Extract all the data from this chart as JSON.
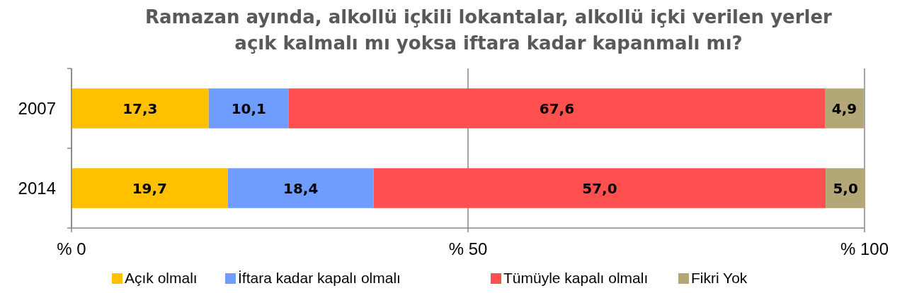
{
  "chart_data": {
    "type": "bar",
    "title": "Ramazan ayında, alkollü içkili lokantalar, alkollü içki verilen yerler\naçık kalmalı mı yoksa iftara kadar kapanmalı mı?",
    "categories": [
      "2007",
      "2014"
    ],
    "orientation": "horizontal",
    "stacked": true,
    "series": [
      {
        "name": "Açık olmalı",
        "color": "#ffc000",
        "values": [
          17.3,
          19.7
        ],
        "value_labels": [
          "17,3",
          "19,7"
        ]
      },
      {
        "name": "İftara kadar kapalı olmalı",
        "color": "#6f9cff",
        "values": [
          10.1,
          18.4
        ],
        "value_labels": [
          "10,1",
          "18,4"
        ]
      },
      {
        "name": "Tümüyle kapalı olmalı",
        "color": "#ff5050",
        "values": [
          67.6,
          57.0
        ],
        "value_labels": [
          "67,6",
          "57,0"
        ]
      },
      {
        "name": "Fikri Yok",
        "color": "#b3a777",
        "values": [
          4.9,
          5.0
        ],
        "value_labels": [
          "4,9",
          "5,0"
        ]
      }
    ],
    "xlim": [
      0,
      100
    ],
    "xticks": [
      {
        "value": 0,
        "label": "% 0"
      },
      {
        "value": 50,
        "label": "% 50"
      },
      {
        "value": 100,
        "label": "% 100"
      }
    ],
    "grid": "x",
    "legend": "bottom"
  }
}
